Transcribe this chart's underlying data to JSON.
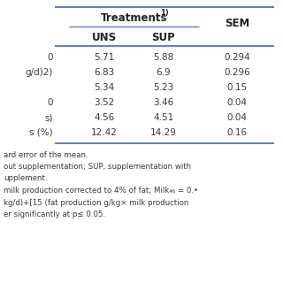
{
  "col_treatments_label": "Treatments",
  "col_treatments_superscript": "1)",
  "sub_headers": [
    "UNS",
    "SUP",
    "SEM"
  ],
  "row_labels": [
    "0",
    "g/d)2)",
    "",
    "0",
    "s)",
    "s (%)"
  ],
  "col_uns": [
    "5.71",
    "6.83",
    "5.34",
    "3.52",
    "4.56",
    "12.42"
  ],
  "col_sup": [
    "5.88",
    "6.9",
    "5.23",
    "3.46",
    "4.51",
    "14.29"
  ],
  "col_sem": [
    "0.294",
    "0.296",
    "0.15",
    "0.04",
    "0.04",
    "0.16"
  ],
  "footnotes": [
    "ard error of the mean.",
    "out supplementation; SUP, supplementation with",
    "upplement.",
    "milk production corrected to 4% of fat; Milk₄₆ = 0.•",
    "kg/d)+[15 (fat production g/kg× milk production",
    "er significantly at p≤ 0.05."
  ],
  "bg_color": "#ffffff",
  "text_color": "#3a3a3a",
  "header_line_color": "#5b7fc0",
  "bold_color": "#222222"
}
